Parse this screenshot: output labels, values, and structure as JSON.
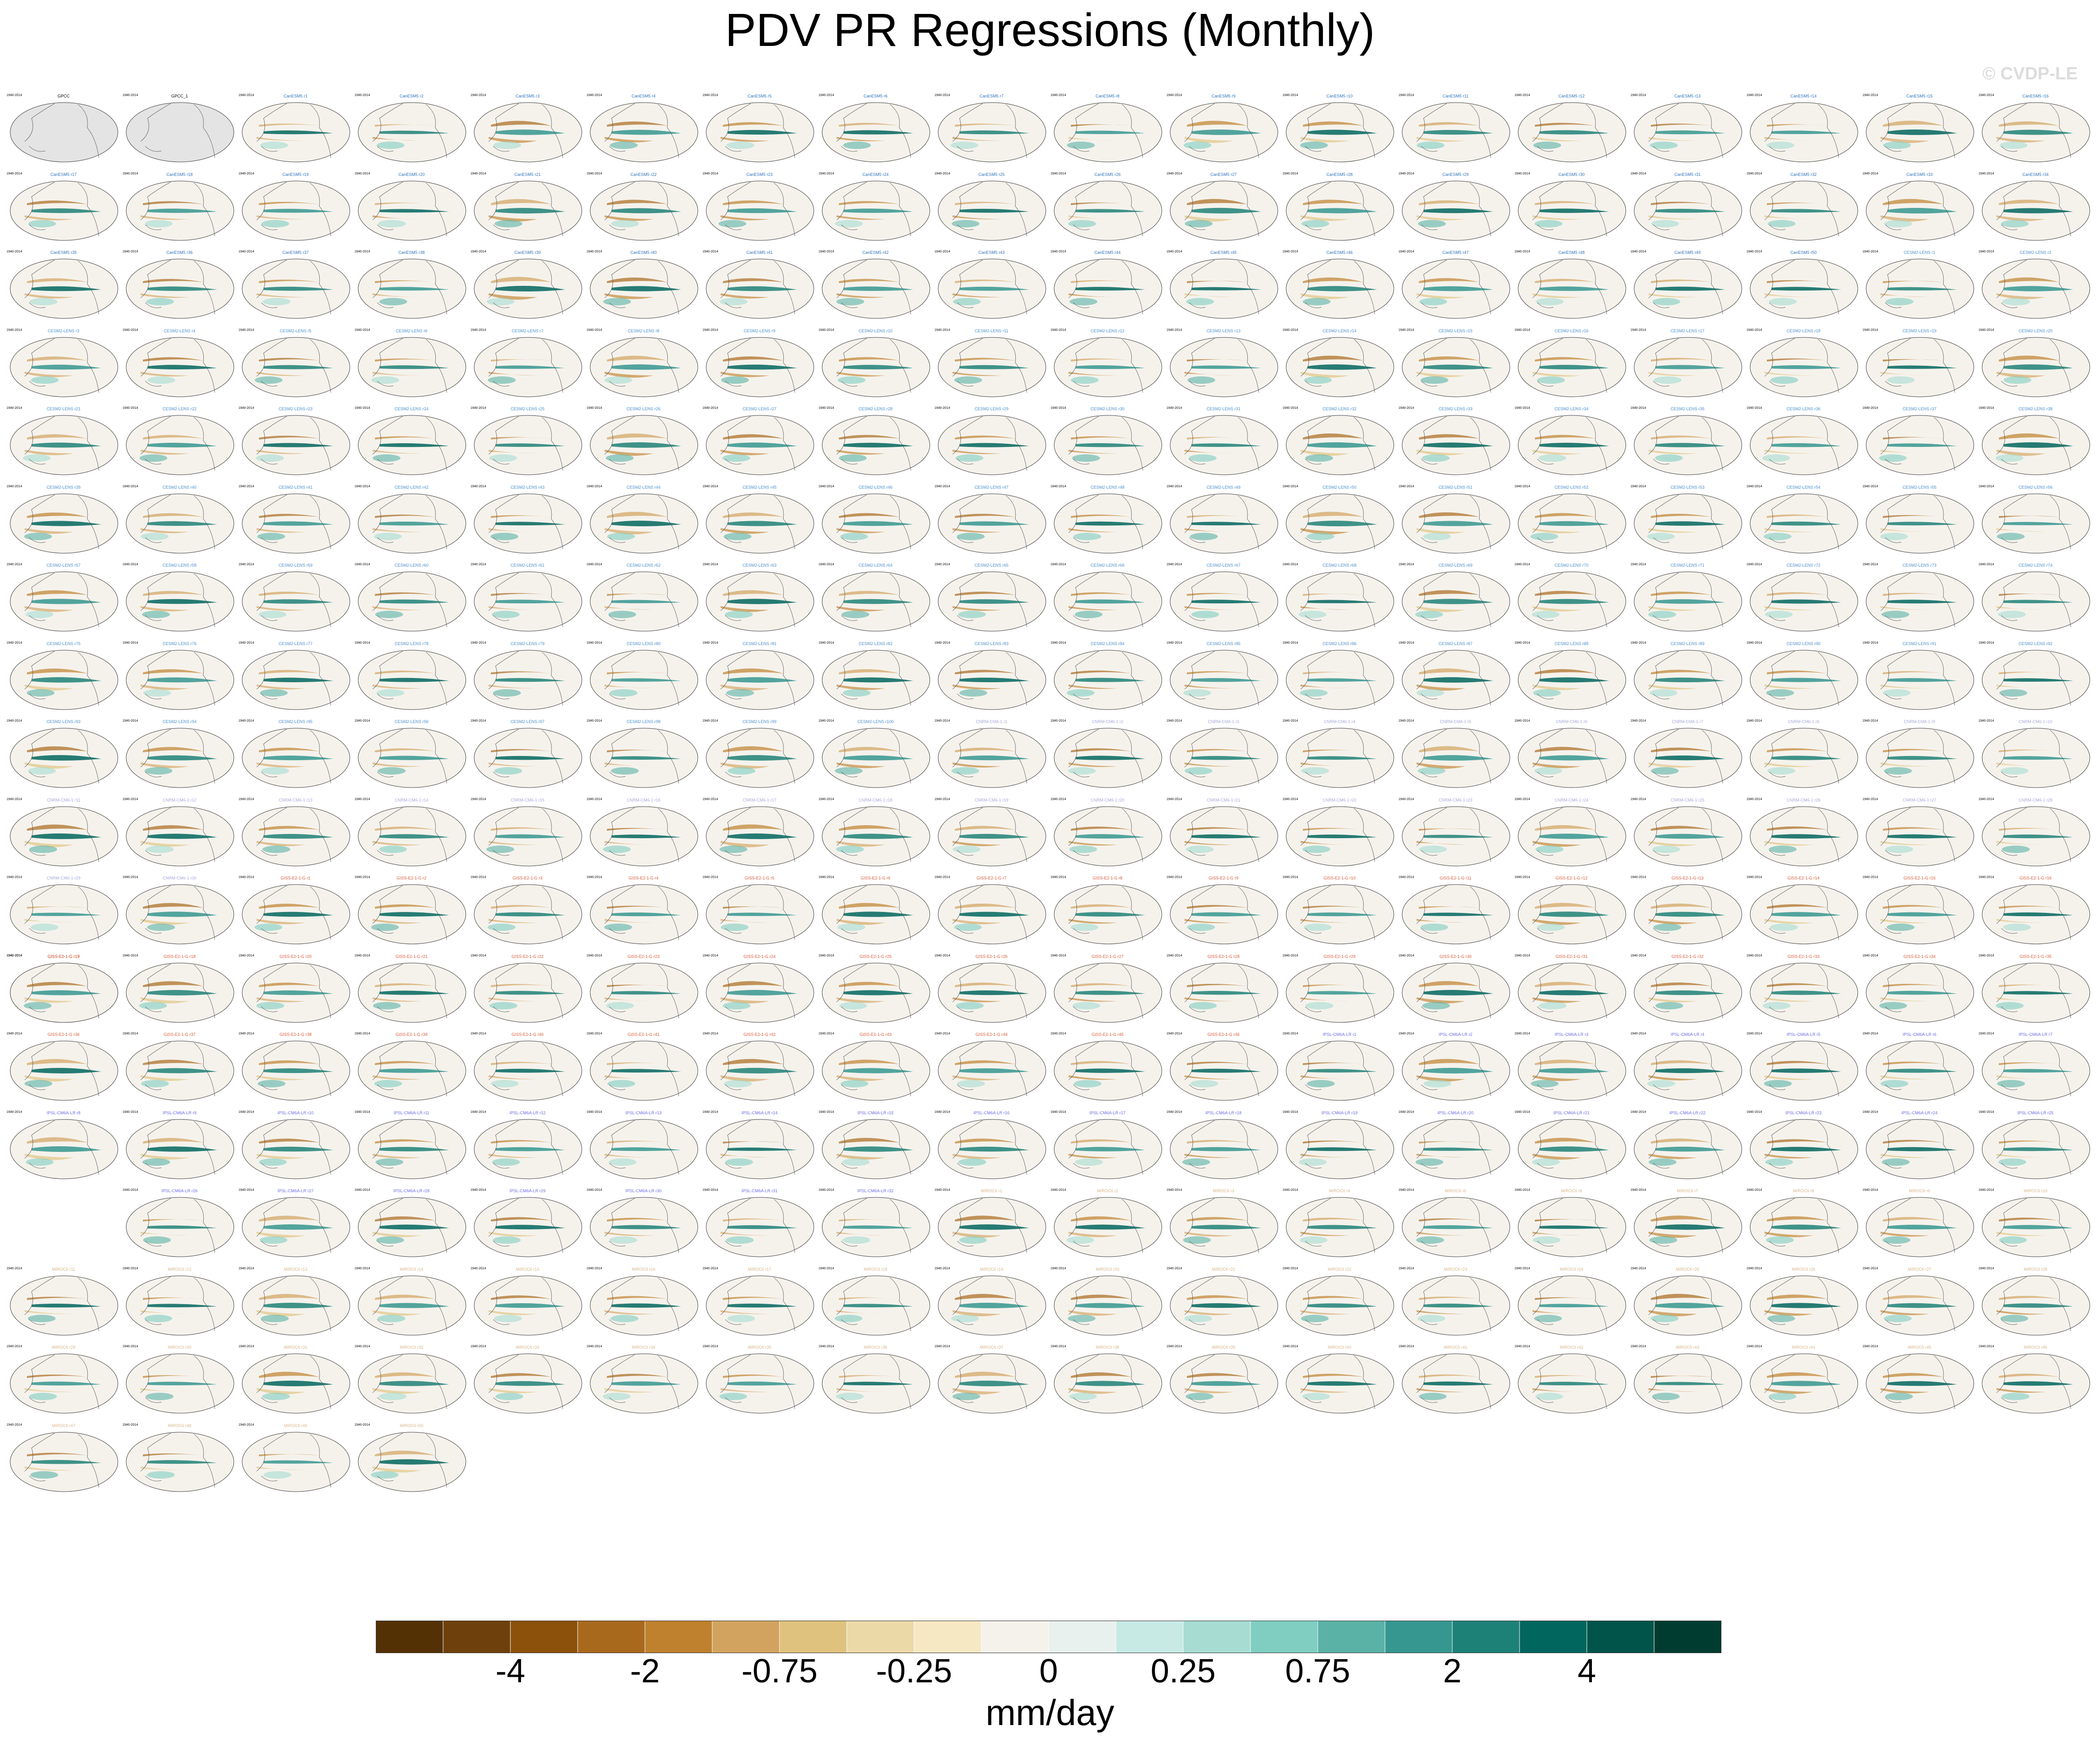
{
  "figure": {
    "title": "PDV PR Regressions (Monthly)",
    "watermark": "© CVDP-LE"
  },
  "chart_data": {
    "type": "heatmap",
    "title": "PDV PR Regressions (Monthly)",
    "units": "mm/day",
    "colorbar": {
      "tick_labels": [
        "-4",
        "-2",
        "-0.75",
        "-0.25",
        "0",
        "0.25",
        "0.75",
        "2",
        "4"
      ],
      "colors": [
        "#543005",
        "#6e400b",
        "#8c510a",
        "#a9691d",
        "#bf812d",
        "#d2a35e",
        "#dfc27d",
        "#ecd9a8",
        "#f6e8c3",
        "#f5f2ec",
        "#e9f1ef",
        "#c7eae5",
        "#a7dcd2",
        "#80cdc1",
        "#5ab2a6",
        "#35978f",
        "#1e8177",
        "#01665e",
        "#01544a",
        "#003c30"
      ]
    },
    "panels": {
      "years_label": "1940-2014",
      "observations": [
        {
          "title": "GPCC",
          "color": "#000000",
          "empty": true
        },
        {
          "title": "GPCC_1",
          "color": "#000000",
          "empty": true
        }
      ],
      "groups": [
        {
          "model": "CanESM5",
          "count": 50,
          "color": "#2f72b8"
        },
        {
          "model": "CESM2-LENS",
          "count": 100,
          "color": "#4a8ecb"
        },
        {
          "model": "CNRM-CM6-1",
          "count": 30,
          "color": "#a7a7d9"
        },
        {
          "model": "GISS-E2-1-G",
          "count": 46,
          "color": "#d45a3a"
        },
        {
          "model": "IPSL-CM6A-LR",
          "count": 32,
          "color": "#6a6ae6"
        },
        {
          "model": "MIROC6",
          "count": 50,
          "color": "#d8b78a"
        }
      ]
    }
  }
}
